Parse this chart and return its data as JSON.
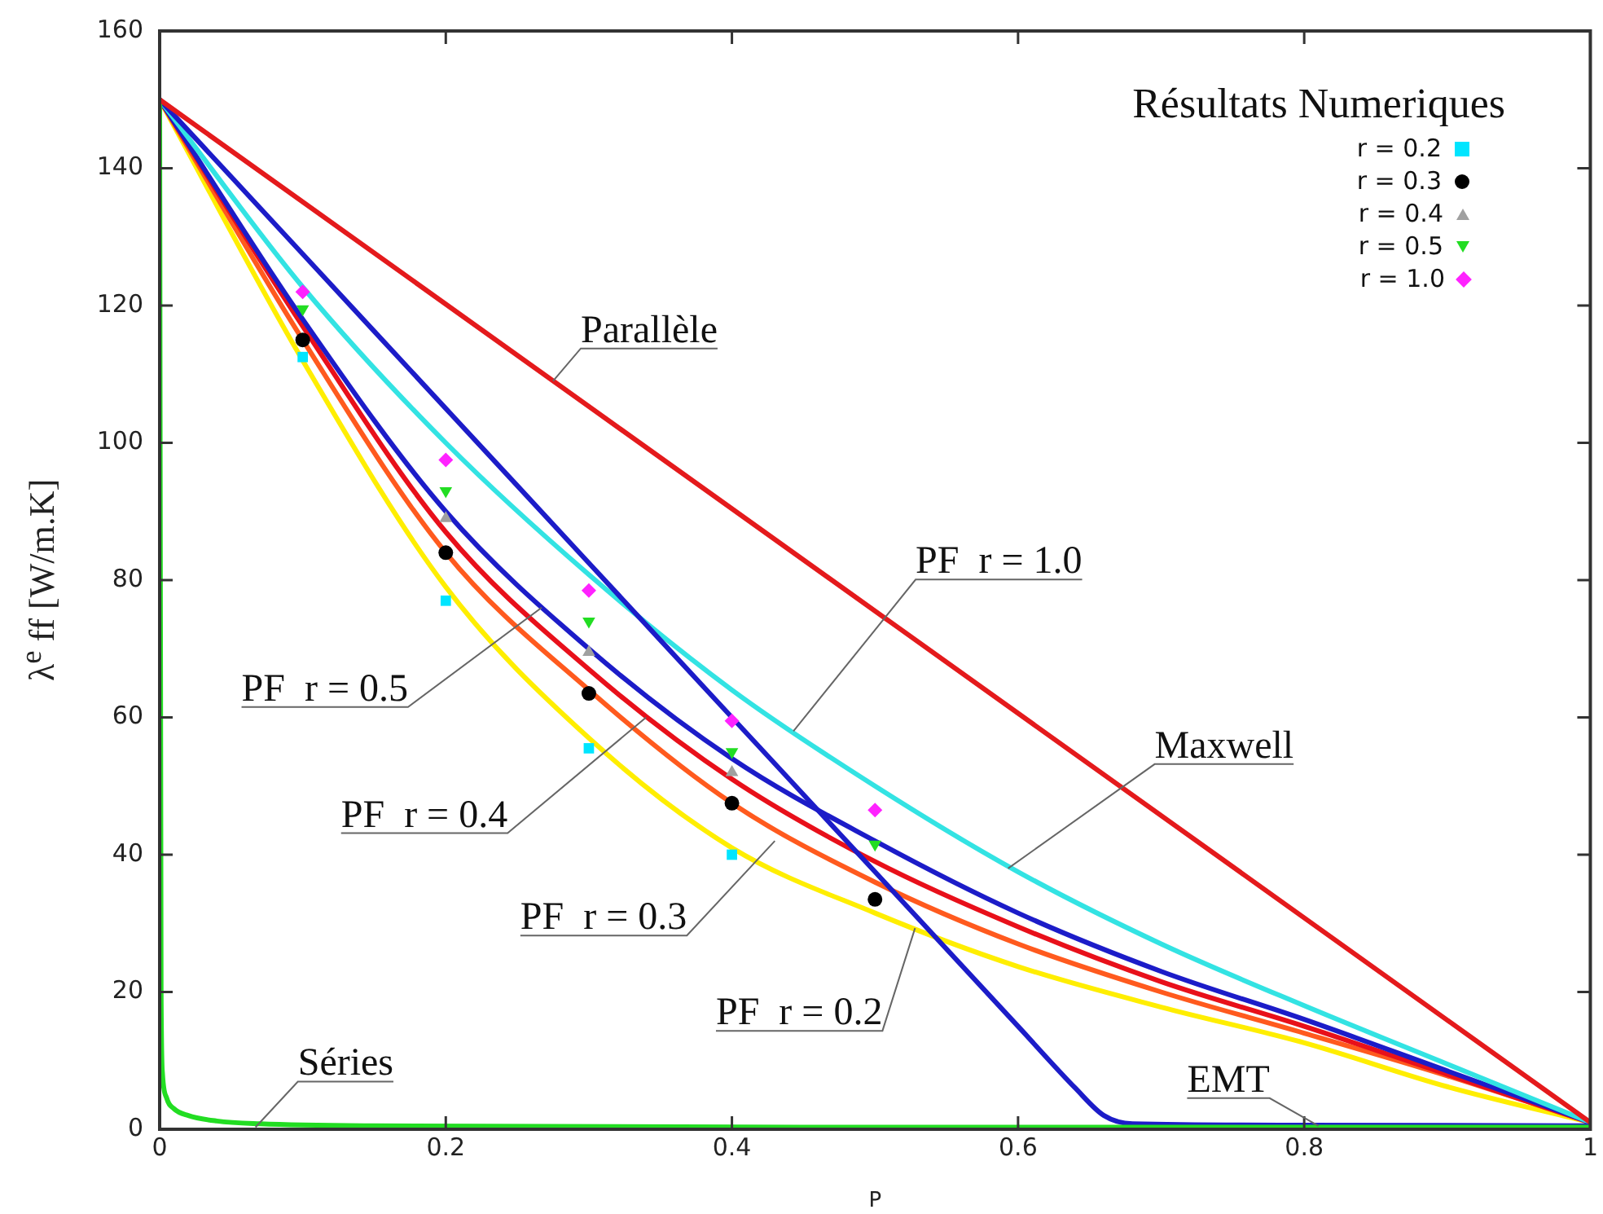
{
  "chart_data": {
    "type": "line",
    "xlabel": "P",
    "ylabel": "λ$^{e}$ ff [W/m.K]",
    "legend_title": "Résultats Numeriques",
    "legend": "top right",
    "xlim": [
      0,
      1
    ],
    "ylim": [
      0,
      160
    ],
    "xticks": [
      0,
      0.2,
      0.4,
      0.6,
      0.8,
      1
    ],
    "yticks": [
      0,
      20,
      40,
      60,
      80,
      100,
      120,
      140,
      160
    ],
    "grid": false,
    "marker": "none",
    "line_style": "solid",
    "series": [
      {
        "type": "line",
        "color": "#e41a1c",
        "x": [
          0,
          1
        ],
        "values": [
          150,
          1
        ]
      },
      {
        "type": "line",
        "color": "#22dd22",
        "x": [
          0,
          0.001,
          0.002,
          0.005,
          0.01,
          0.02,
          0.04,
          0.07,
          0.15,
          0.5,
          1
        ],
        "values": [
          150,
          20,
          8,
          4.5,
          3,
          2,
          1.2,
          0.8,
          0.5,
          0.3,
          0.3
        ]
      },
      {
        "type": "line",
        "color": "#1c1cc8",
        "x": [
          0,
          0.1,
          0.2,
          0.3,
          0.4,
          0.5,
          0.6,
          0.64,
          0.66,
          0.68,
          0.8,
          1
        ],
        "values": [
          150,
          127.5,
          105,
          82.5,
          60,
          37.5,
          15,
          6,
          2,
          0.8,
          0.6,
          0.5
        ]
      },
      {
        "type": "line",
        "color": "#33e3e3",
        "x": [
          0,
          0.1,
          0.2,
          0.3,
          0.4,
          0.5,
          0.6,
          0.7,
          0.8,
          0.9,
          1
        ],
        "values": [
          150,
          122.7,
          100,
          80.8,
          64,
          50,
          37.5,
          27,
          18,
          9.5,
          1
        ]
      },
      {
        "type": "line",
        "color": "#1c1cc8",
        "x": [
          0,
          0.1,
          0.2,
          0.3,
          0.4,
          0.5,
          0.6,
          0.7,
          0.8,
          0.9,
          1
        ],
        "values": [
          150,
          118,
          90,
          70,
          54,
          42,
          31.5,
          23,
          16,
          8.5,
          1
        ]
      },
      {
        "type": "line",
        "color": "#e8101a",
        "x": [
          0,
          0.1,
          0.2,
          0.3,
          0.4,
          0.5,
          0.6,
          0.7,
          0.8,
          0.9,
          1
        ],
        "values": [
          150,
          117,
          87,
          67,
          51,
          39,
          29.5,
          21.5,
          15,
          8,
          1
        ]
      },
      {
        "type": "line",
        "color": "#ff5a1e",
        "x": [
          0,
          0.1,
          0.2,
          0.3,
          0.4,
          0.5,
          0.6,
          0.7,
          0.8,
          0.9,
          1
        ],
        "values": [
          150,
          115,
          84,
          64,
          47.5,
          36,
          27,
          20,
          14,
          7.8,
          1
        ]
      },
      {
        "type": "line",
        "color": "#ffee00",
        "x": [
          0,
          0.1,
          0.2,
          0.3,
          0.4,
          0.5,
          0.6,
          0.7,
          0.8,
          0.9,
          1
        ],
        "values": [
          150,
          112,
          79,
          57,
          41,
          31.5,
          23.7,
          17.8,
          12.6,
          6.2,
          1
        ]
      },
      {
        "type": "scatter",
        "name": "r = 0.2",
        "color": "#00e5ff",
        "marker": "square",
        "x": [
          0.1,
          0.2,
          0.3,
          0.4
        ],
        "values": [
          112.5,
          77,
          55.5,
          40
        ]
      },
      {
        "type": "scatter",
        "name": "r = 0.3",
        "color": "#000000",
        "marker": "circle",
        "x": [
          0.1,
          0.2,
          0.3,
          0.4,
          0.5
        ],
        "values": [
          115,
          84,
          63.5,
          47.5,
          33.5
        ]
      },
      {
        "type": "scatter",
        "name": "r = 0.4",
        "color": "#a0a0a0",
        "marker": "triangle",
        "x": [
          0.2,
          0.3,
          0.4
        ],
        "values": [
          89,
          69.5,
          52
        ]
      },
      {
        "type": "scatter",
        "name": "r = 0.5",
        "color": "#22dd22",
        "marker": "triangle_down",
        "x": [
          0.1,
          0.2,
          0.3,
          0.4,
          0.5
        ],
        "values": [
          119.5,
          93,
          74,
          55,
          41.5
        ]
      },
      {
        "type": "scatter",
        "name": "r = 1.0",
        "color": "#ff22ff",
        "marker": "diamond",
        "x": [
          0.1,
          0.2,
          0.3,
          0.4,
          0.5
        ],
        "values": [
          122,
          97.5,
          78.5,
          59.5,
          46.5
        ]
      }
    ],
    "annotations": [
      {
        "text": "Parallèle",
        "x": 0.275,
        "y": 109
      },
      {
        "text": "PF  r = 1.0",
        "x": 0.443,
        "y": 58
      },
      {
        "text": "Maxwell",
        "x": 0.593,
        "y": 38
      },
      {
        "text": "PF  r = 0.5",
        "x": 0.267,
        "y": 76
      },
      {
        "text": "PF  r = 0.4",
        "x": 0.34,
        "y": 60
      },
      {
        "text": "PF  r = 0.3",
        "x": 0.43,
        "y": 42
      },
      {
        "text": "PF  r = 0.2",
        "x": 0.528,
        "y": 29.3
      },
      {
        "text": "Séries",
        "x": 0.067,
        "y": 0.3
      },
      {
        "text": "EMT",
        "x": 0.81,
        "y": 0.5
      }
    ]
  }
}
